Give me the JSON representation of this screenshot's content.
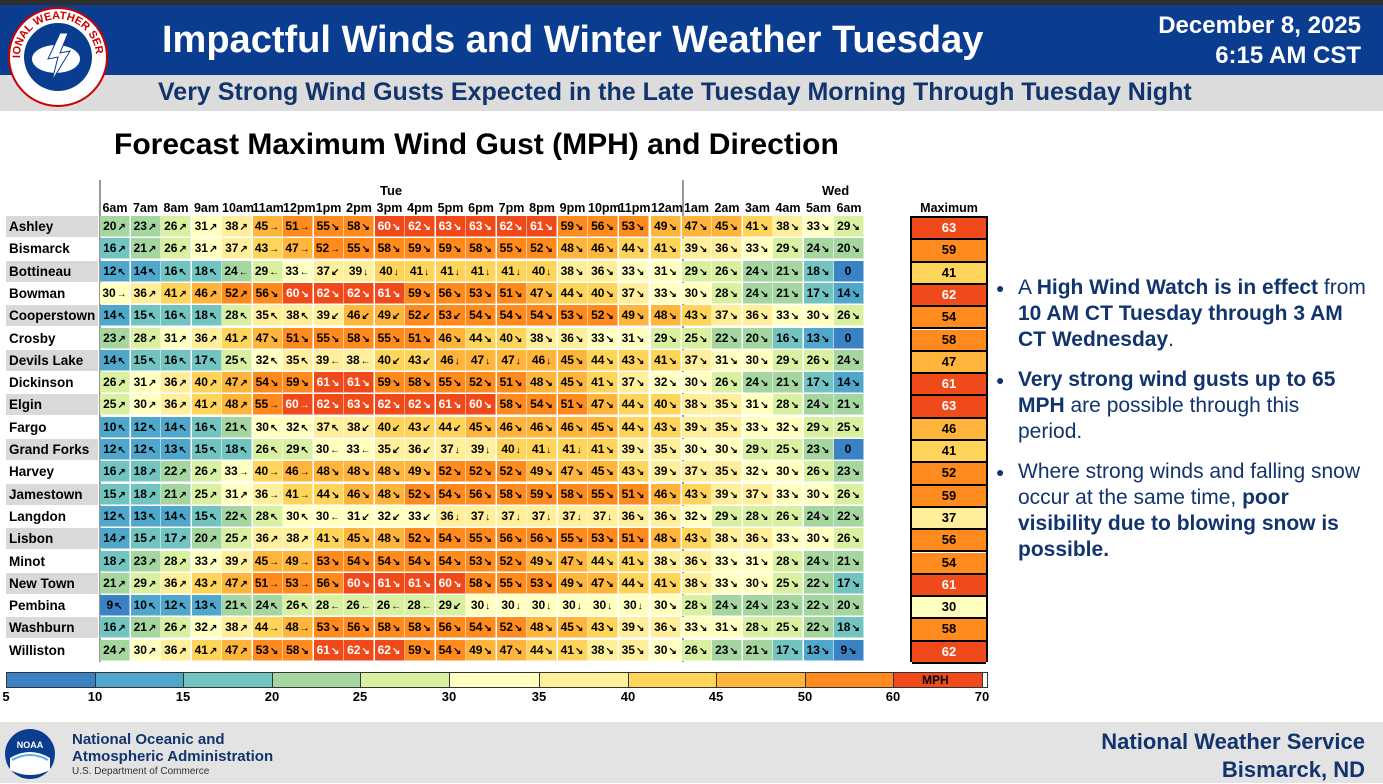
{
  "header": {
    "title": "Impactful Winds and Winter Weather Tuesday",
    "date": "December 8, 2025",
    "time": "6:15 AM CST",
    "subtitle": "Very Strong Wind Gusts Expected in the Late Tuesday Morning Through Tuesday Night",
    "logo_text": "NATIONAL WEATHER SERVICE"
  },
  "chart_title": "Forecast Maximum Wind Gust (MPH) and Direction",
  "days": [
    "Tue",
    "Wed"
  ],
  "hours": [
    "6am",
    "7am",
    "8am",
    "9am",
    "10am",
    "11am",
    "12pm",
    "1pm",
    "2pm",
    "3pm",
    "4pm",
    "5pm",
    "6pm",
    "7pm",
    "8pm",
    "9pm",
    "10pm",
    "11pm",
    "12am",
    "1am",
    "2am",
    "3am",
    "4am",
    "5am",
    "6am"
  ],
  "max_header": "Maximum",
  "rows": [
    {
      "name": "Ashley",
      "g": [
        20,
        23,
        26,
        31,
        38,
        45,
        51,
        55,
        58,
        60,
        62,
        63,
        63,
        62,
        61,
        59,
        56,
        53,
        49,
        47,
        45,
        41,
        38,
        33,
        29
      ],
      "d": [
        "↗",
        "↗",
        "↗",
        "↗",
        "↗",
        "→",
        "→",
        "↘",
        "↘",
        "↘",
        "↘",
        "↘",
        "↘",
        "↘",
        "↘",
        "↘",
        "↘",
        "↘",
        "↘",
        "↘",
        "↘",
        "↘",
        "↘",
        "↘",
        "↘"
      ],
      "max": 63
    },
    {
      "name": "Bismarck",
      "g": [
        16,
        21,
        26,
        31,
        37,
        43,
        47,
        52,
        55,
        58,
        59,
        59,
        58,
        55,
        52,
        48,
        46,
        44,
        41,
        39,
        36,
        33,
        29,
        24,
        20
      ],
      "d": [
        "↗",
        "↗",
        "↗",
        "↗",
        "↗",
        "→",
        "→",
        "→",
        "↘",
        "↘",
        "↘",
        "↘",
        "↘",
        "↘",
        "↘",
        "↘",
        "↘",
        "↘",
        "↘",
        "↘",
        "↘",
        "↘",
        "↘",
        "↘",
        "↘"
      ],
      "max": 59
    },
    {
      "name": "Bottineau",
      "g": [
        12,
        14,
        16,
        18,
        24,
        29,
        33,
        37,
        39,
        40,
        41,
        41,
        41,
        41,
        40,
        38,
        36,
        33,
        31,
        29,
        26,
        24,
        21,
        18,
        0
      ],
      "d": [
        "↖",
        "↖",
        "↖",
        "↖",
        "←",
        "←",
        "←",
        "↙",
        "↓",
        "↓",
        "↓",
        "↓",
        "↓",
        "↓",
        "↓",
        "↘",
        "↘",
        "↘",
        "↘",
        "↘",
        "↘",
        "↘",
        "↘",
        "↘",
        ""
      ],
      "max": 41
    },
    {
      "name": "Bowman",
      "g": [
        30,
        36,
        41,
        46,
        52,
        56,
        60,
        62,
        62,
        61,
        59,
        56,
        53,
        51,
        47,
        44,
        40,
        37,
        33,
        30,
        28,
        24,
        21,
        17,
        14
      ],
      "d": [
        "→",
        "↗",
        "↗",
        "↗",
        "↗",
        "↘",
        "↘",
        "↘",
        "↘",
        "↘",
        "↘",
        "↘",
        "↘",
        "↘",
        "↘",
        "↘",
        "↘",
        "↘",
        "↘",
        "↘",
        "↘",
        "↘",
        "↘",
        "↘",
        "↘"
      ],
      "max": 62
    },
    {
      "name": "Cooperstown",
      "g": [
        14,
        15,
        16,
        18,
        28,
        35,
        38,
        39,
        46,
        49,
        52,
        53,
        54,
        54,
        54,
        53,
        52,
        49,
        48,
        43,
        37,
        36,
        33,
        30,
        26
      ],
      "d": [
        "↖",
        "↖",
        "↖",
        "↖",
        "↖",
        "↖",
        "↖",
        "↙",
        "↙",
        "↙",
        "↙",
        "↙",
        "↘",
        "↘",
        "↘",
        "↘",
        "↘",
        "↘",
        "↘",
        "↘",
        "↘",
        "↘",
        "↘",
        "↘",
        "↘"
      ],
      "max": 54
    },
    {
      "name": "Crosby",
      "g": [
        23,
        28,
        31,
        36,
        41,
        47,
        51,
        55,
        58,
        55,
        51,
        46,
        44,
        40,
        38,
        36,
        33,
        31,
        29,
        25,
        22,
        20,
        16,
        13,
        0
      ],
      "d": [
        "↗",
        "↗",
        "↗",
        "↗",
        "↗",
        "↘",
        "↘",
        "↘",
        "↘",
        "↘",
        "↘",
        "↘",
        "↘",
        "↘",
        "↘",
        "↘",
        "↘",
        "↘",
        "↘",
        "↘",
        "↘",
        "↘",
        "↘",
        "↘",
        ""
      ],
      "max": 58
    },
    {
      "name": "Devils Lake",
      "g": [
        14,
        15,
        16,
        17,
        25,
        32,
        35,
        39,
        38,
        40,
        43,
        46,
        47,
        47,
        46,
        45,
        44,
        43,
        41,
        37,
        31,
        30,
        29,
        26,
        24
      ],
      "d": [
        "↖",
        "↖",
        "↖",
        "↖",
        "↖",
        "↖",
        "↖",
        "←",
        "←",
        "↙",
        "↙",
        "↓",
        "↓",
        "↓",
        "↓",
        "↘",
        "↘",
        "↘",
        "↘",
        "↘",
        "↘",
        "↘",
        "↘",
        "↘",
        "↘"
      ],
      "max": 47
    },
    {
      "name": "Dickinson",
      "g": [
        26,
        31,
        36,
        40,
        47,
        54,
        59,
        61,
        61,
        59,
        58,
        55,
        52,
        51,
        48,
        45,
        41,
        37,
        32,
        30,
        26,
        24,
        21,
        17,
        14
      ],
      "d": [
        "↗",
        "↗",
        "↗",
        "↗",
        "↗",
        "↘",
        "↘",
        "↘",
        "↘",
        "↘",
        "↘",
        "↘",
        "↘",
        "↘",
        "↘",
        "↘",
        "↘",
        "↘",
        "↘",
        "↘",
        "↘",
        "↘",
        "↘",
        "↘",
        "↘"
      ],
      "max": 61
    },
    {
      "name": "Elgin",
      "g": [
        25,
        30,
        36,
        41,
        48,
        55,
        60,
        62,
        63,
        62,
        62,
        61,
        60,
        58,
        54,
        51,
        47,
        44,
        40,
        38,
        35,
        31,
        28,
        24,
        21
      ],
      "d": [
        "↗",
        "↗",
        "↗",
        "↗",
        "↗",
        "→",
        "→",
        "↘",
        "↘",
        "↘",
        "↘",
        "↘",
        "↘",
        "↘",
        "↘",
        "↘",
        "↘",
        "↘",
        "↘",
        "↘",
        "↘",
        "↘",
        "↘",
        "↘",
        "↘"
      ],
      "max": 63
    },
    {
      "name": "Fargo",
      "g": [
        10,
        12,
        14,
        16,
        21,
        30,
        32,
        37,
        38,
        40,
        43,
        44,
        45,
        46,
        46,
        46,
        45,
        44,
        43,
        39,
        35,
        33,
        32,
        29,
        25
      ],
      "d": [
        "↖",
        "↖",
        "↖",
        "↖",
        "↖",
        "↖",
        "↖",
        "↖",
        "↙",
        "↙",
        "↙",
        "↙",
        "↘",
        "↘",
        "↘",
        "↘",
        "↘",
        "↘",
        "↘",
        "↘",
        "↘",
        "↘",
        "↘",
        "↘",
        "↘"
      ],
      "max": 46
    },
    {
      "name": "Grand Forks",
      "g": [
        12,
        12,
        13,
        15,
        18,
        26,
        29,
        30,
        33,
        35,
        36,
        37,
        39,
        40,
        41,
        41,
        41,
        39,
        35,
        30,
        30,
        29,
        25,
        23,
        0
      ],
      "d": [
        "↖",
        "↖",
        "↖",
        "↖",
        "↖",
        "↖",
        "↖",
        "←",
        "←",
        "↙",
        "↙",
        "↓",
        "↓",
        "↓",
        "↓",
        "↓",
        "↘",
        "↘",
        "↘",
        "↘",
        "↘",
        "↘",
        "↘",
        "↘",
        ""
      ],
      "max": 41
    },
    {
      "name": "Harvey",
      "g": [
        16,
        18,
        22,
        26,
        33,
        40,
        46,
        48,
        48,
        48,
        49,
        52,
        52,
        52,
        49,
        47,
        45,
        43,
        39,
        37,
        35,
        32,
        30,
        26,
        23
      ],
      "d": [
        "↗",
        "↗",
        "↗",
        "↗",
        "→",
        "→",
        "→",
        "↘",
        "↘",
        "↘",
        "↘",
        "↘",
        "↘",
        "↘",
        "↘",
        "↘",
        "↘",
        "↘",
        "↘",
        "↘",
        "↘",
        "↘",
        "↘",
        "↘",
        "↘"
      ],
      "max": 52
    },
    {
      "name": "Jamestown",
      "g": [
        15,
        18,
        21,
        25,
        31,
        36,
        41,
        44,
        46,
        48,
        52,
        54,
        56,
        58,
        59,
        58,
        55,
        51,
        46,
        43,
        39,
        37,
        33,
        30,
        26
      ],
      "d": [
        "↗",
        "↗",
        "↗",
        "↗",
        "↗",
        "→",
        "→",
        "↘",
        "↘",
        "↘",
        "↘",
        "↘",
        "↘",
        "↘",
        "↘",
        "↘",
        "↘",
        "↘",
        "↘",
        "↘",
        "↘",
        "↘",
        "↘",
        "↘",
        "↘"
      ],
      "max": 59
    },
    {
      "name": "Langdon",
      "g": [
        12,
        13,
        14,
        15,
        22,
        28,
        30,
        30,
        31,
        32,
        33,
        36,
        37,
        37,
        37,
        37,
        37,
        36,
        36,
        32,
        29,
        28,
        26,
        24,
        22
      ],
      "d": [
        "↖",
        "↖",
        "↖",
        "↖",
        "↖",
        "↖",
        "↖",
        "←",
        "↙",
        "↙",
        "↙",
        "↓",
        "↓",
        "↓",
        "↓",
        "↓",
        "↓",
        "↘",
        "↘",
        "↘",
        "↘",
        "↘",
        "↘",
        "↘",
        "↘"
      ],
      "max": 37
    },
    {
      "name": "Lisbon",
      "g": [
        14,
        15,
        17,
        20,
        25,
        36,
        38,
        41,
        45,
        48,
        52,
        54,
        55,
        56,
        56,
        55,
        53,
        51,
        48,
        43,
        38,
        36,
        33,
        30,
        26
      ],
      "d": [
        "↗",
        "↗",
        "↗",
        "↗",
        "↗",
        "↗",
        "↗",
        "↘",
        "↘",
        "↘",
        "↘",
        "↘",
        "↘",
        "↘",
        "↘",
        "↘",
        "↘",
        "↘",
        "↘",
        "↘",
        "↘",
        "↘",
        "↘",
        "↘",
        "↘"
      ],
      "max": 56
    },
    {
      "name": "Minot",
      "g": [
        18,
        23,
        28,
        33,
        39,
        45,
        49,
        53,
        54,
        54,
        54,
        54,
        53,
        52,
        49,
        47,
        44,
        41,
        38,
        36,
        33,
        31,
        28,
        24,
        21
      ],
      "d": [
        "↗",
        "↗",
        "↗",
        "↗",
        "↗",
        "→",
        "→",
        "↘",
        "↘",
        "↘",
        "↘",
        "↘",
        "↘",
        "↘",
        "↘",
        "↘",
        "↘",
        "↘",
        "↘",
        "↘",
        "↘",
        "↘",
        "↘",
        "↘",
        "↘"
      ],
      "max": 54
    },
    {
      "name": "New Town",
      "g": [
        21,
        29,
        36,
        43,
        47,
        51,
        53,
        56,
        60,
        61,
        61,
        60,
        58,
        55,
        53,
        49,
        47,
        44,
        41,
        38,
        33,
        30,
        25,
        22,
        17
      ],
      "d": [
        "↗",
        "↗",
        "↗",
        "↗",
        "↗",
        "→",
        "→",
        "↘",
        "↘",
        "↘",
        "↘",
        "↘",
        "↘",
        "↘",
        "↘",
        "↘",
        "↘",
        "↘",
        "↘",
        "↘",
        "↘",
        "↘",
        "↘",
        "↘",
        "↘"
      ],
      "max": 61
    },
    {
      "name": "Pembina",
      "g": [
        9,
        10,
        12,
        13,
        21,
        24,
        26,
        28,
        26,
        26,
        28,
        29,
        30,
        30,
        30,
        30,
        30,
        30,
        30,
        28,
        24,
        24,
        23,
        22,
        20
      ],
      "d": [
        "↖",
        "↖",
        "↖",
        "↖",
        "↖",
        "↖",
        "↖",
        "←",
        "←",
        "←",
        "←",
        "↙",
        "↓",
        "↓",
        "↓",
        "↓",
        "↓",
        "↓",
        "↘",
        "↘",
        "↘",
        "↘",
        "↘",
        "↘",
        "↘"
      ],
      "max": 30
    },
    {
      "name": "Washburn",
      "g": [
        16,
        21,
        26,
        32,
        38,
        44,
        48,
        53,
        56,
        58,
        58,
        56,
        54,
        52,
        48,
        45,
        43,
        39,
        36,
        33,
        31,
        28,
        25,
        22,
        18
      ],
      "d": [
        "↗",
        "↗",
        "↗",
        "↗",
        "↗",
        "→",
        "→",
        "↘",
        "↘",
        "↘",
        "↘",
        "↘",
        "↘",
        "↘",
        "↘",
        "↘",
        "↘",
        "↘",
        "↘",
        "↘",
        "↘",
        "↘",
        "↘",
        "↘",
        "↘"
      ],
      "max": 58
    },
    {
      "name": "Williston",
      "g": [
        24,
        30,
        36,
        41,
        47,
        53,
        58,
        61,
        62,
        62,
        59,
        54,
        49,
        47,
        44,
        41,
        38,
        35,
        30,
        26,
        23,
        21,
        17,
        13,
        9
      ],
      "d": [
        "↗",
        "↗",
        "↗",
        "↗",
        "↗",
        "↘",
        "↘",
        "↘",
        "↘",
        "↘",
        "↘",
        "↘",
        "↘",
        "↘",
        "↘",
        "↘",
        "↘",
        "↘",
        "↘",
        "↘",
        "↘",
        "↘",
        "↘",
        "↘",
        "↘"
      ],
      "max": 62
    }
  ],
  "bullets": [
    {
      "parts": [
        {
          "t": "A ",
          "b": false
        },
        {
          "t": "High Wind Watch is in effect",
          "b": true
        },
        {
          "t": " from ",
          "b": false
        },
        {
          "t": "10 AM CT Tuesday through 3 AM CT Wednesday",
          "b": true
        },
        {
          "t": ".",
          "b": false
        }
      ]
    },
    {
      "parts": [
        {
          "t": "Very strong wind gusts up to 65 MPH",
          "b": true
        },
        {
          "t": " are possible through this period.",
          "b": false
        }
      ]
    },
    {
      "parts": [
        {
          "t": "Where strong winds and falling snow occur at the same time, ",
          "b": false
        },
        {
          "t": "poor visibility due to blowing snow is possible.",
          "b": true
        }
      ]
    }
  ],
  "scale": {
    "ticks": [
      "5",
      "10",
      "15",
      "20",
      "25",
      "30",
      "35",
      "40",
      "45",
      "50",
      "60",
      "70"
    ],
    "unit": "MPH",
    "colors": [
      "#3b82c4",
      "#4fa8cc",
      "#72c4c0",
      "#a5d6a0",
      "#d8f0a0",
      "#ffffc0",
      "#ffef9a",
      "#ffd45a",
      "#ffb43c",
      "#ff8a1e",
      "#f04a1a",
      "#e01010"
    ]
  },
  "footer": {
    "agency_line1": "National Oceanic and",
    "agency_line2": "Atmospheric Administration",
    "dept": "U.S. Department of Commerce",
    "office_line1": "National Weather Service",
    "office_line2": "Bismarck, ND",
    "noaa_logo_text": "NOAA"
  }
}
